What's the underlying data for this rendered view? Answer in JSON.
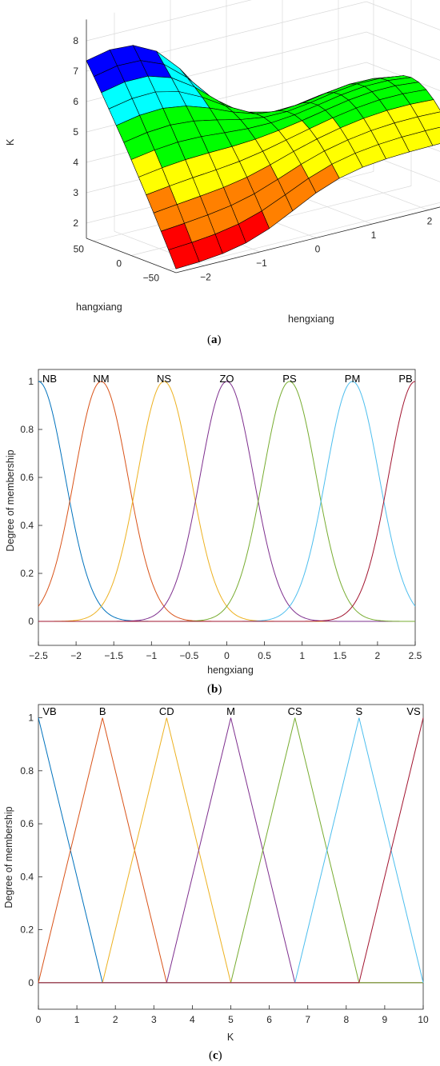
{
  "captions": {
    "a": "a",
    "b": "b",
    "c": "c"
  },
  "chart_data": [
    {
      "type": "surface",
      "xlabel": "hengxiang",
      "ylabel": "hangxiang",
      "zlabel": "K",
      "xticks": [
        "−2",
        "−1",
        "0",
        "1",
        "2"
      ],
      "yticks": [
        "50",
        "0",
        "−50"
      ],
      "zticks": [
        "2",
        "3",
        "4",
        "5",
        "6",
        "7",
        "8"
      ],
      "xlim": [
        -2.5,
        2.5
      ],
      "ylim": [
        -60,
        60
      ],
      "zlim": [
        1.5,
        8.5
      ],
      "colormap": [
        "#ff0000",
        "#ff8000",
        "#ffff00",
        "#00ff00",
        "#00ffff",
        "#0000ff",
        "#ff00ff"
      ]
    },
    {
      "type": "line",
      "xlabel": "hengxiang",
      "ylabel": "Degree of membership",
      "xlim": [
        -2.5,
        2.5
      ],
      "ylim": [
        -0.1,
        1.05
      ],
      "xticks": [
        "−2.5",
        "−2",
        "−1.5",
        "−1",
        "−0.5",
        "0",
        "0.5",
        "1",
        "1.5",
        "2",
        "2.5"
      ],
      "yticks": [
        "0",
        "0.2",
        "0.4",
        "0.6",
        "0.8",
        "1"
      ],
      "mf_shape": "gaussian",
      "sigma": 0.354,
      "series": [
        {
          "name": "NB",
          "center": -2.5,
          "color": "#0072bd"
        },
        {
          "name": "NM",
          "center": -1.667,
          "color": "#d95319"
        },
        {
          "name": "NS",
          "center": -0.833,
          "color": "#edb120"
        },
        {
          "name": "ZO",
          "center": 0,
          "color": "#7e2f8e"
        },
        {
          "name": "PS",
          "center": 0.833,
          "color": "#77ac30"
        },
        {
          "name": "PM",
          "center": 1.667,
          "color": "#4dbeee"
        },
        {
          "name": "PB",
          "center": 2.5,
          "color": "#a2142f"
        }
      ]
    },
    {
      "type": "line",
      "xlabel": "K",
      "ylabel": "Degree of membership",
      "xlim": [
        0,
        10
      ],
      "ylim": [
        -0.1,
        1.05
      ],
      "xticks": [
        "0",
        "1",
        "2",
        "3",
        "4",
        "5",
        "6",
        "7",
        "8",
        "9",
        "10"
      ],
      "yticks": [
        "0",
        "0.2",
        "0.4",
        "0.6",
        "0.8",
        "1"
      ],
      "mf_shape": "triangular",
      "series": [
        {
          "name": "VB",
          "points": [
            [
              0,
              1
            ],
            [
              1.667,
              0
            ]
          ],
          "color": "#0072bd"
        },
        {
          "name": "B",
          "points": [
            [
              0,
              0
            ],
            [
              1.667,
              1
            ],
            [
              3.333,
              0
            ]
          ],
          "color": "#d95319"
        },
        {
          "name": "CD",
          "points": [
            [
              1.667,
              0
            ],
            [
              3.333,
              1
            ],
            [
              5,
              0
            ]
          ],
          "color": "#edb120"
        },
        {
          "name": "M",
          "points": [
            [
              3.333,
              0
            ],
            [
              5,
              1
            ],
            [
              6.667,
              0
            ]
          ],
          "color": "#7e2f8e"
        },
        {
          "name": "CS",
          "points": [
            [
              5,
              0
            ],
            [
              6.667,
              1
            ],
            [
              8.333,
              0
            ]
          ],
          "color": "#77ac30"
        },
        {
          "name": "S",
          "points": [
            [
              6.667,
              0
            ],
            [
              8.333,
              1
            ],
            [
              10,
              0
            ]
          ],
          "color": "#4dbeee"
        },
        {
          "name": "VS",
          "points": [
            [
              8.333,
              0
            ],
            [
              10,
              1
            ]
          ],
          "color": "#a2142f"
        }
      ]
    }
  ]
}
